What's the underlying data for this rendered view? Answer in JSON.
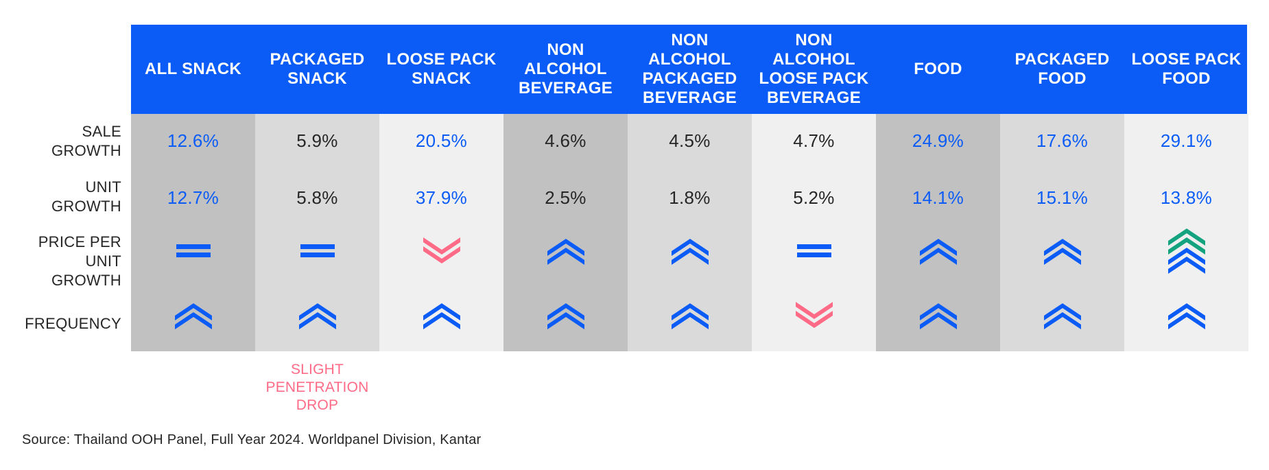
{
  "chart_data": {
    "type": "table",
    "columns": [
      "ALL SNACK",
      "PACKAGED\nSNACK",
      "LOOSE PACK\nSNACK",
      "NON\nALCOHOL\nBEVERAGE",
      "NON\nALCOHOL\nPACKAGED\nBEVERAGE",
      "NON\nALCOHOL\nLOOSE PACK\nBEVERAGE",
      "FOOD",
      "PACKAGED\nFOOD",
      "LOOSE PACK\nFOOD"
    ],
    "row_labels": [
      "SALE\nGROWTH",
      "UNIT\nGROWTH",
      "PRICE PER\nUNIT\nGROWTH",
      "FREQUENCY"
    ],
    "sale_growth": [
      "12.6%",
      "5.9%",
      "20.5%",
      "4.6%",
      "4.5%",
      "4.7%",
      "24.9%",
      "17.6%",
      "29.1%"
    ],
    "unit_growth": [
      "12.7%",
      "5.8%",
      "37.9%",
      "2.5%",
      "1.8%",
      "5.2%",
      "14.1%",
      "15.1%",
      "13.8%"
    ],
    "highlighted_value_columns": [
      0,
      2,
      6,
      7,
      8
    ],
    "price_per_unit_growth": [
      "equal",
      "equal",
      "down",
      "up",
      "up",
      "equal",
      "up",
      "up",
      "strong-up"
    ],
    "frequency": [
      "up",
      "up",
      "up",
      "up",
      "up",
      "down",
      "up",
      "up",
      "up"
    ],
    "column_shades": [
      "#c1c1c1",
      "#dadada",
      "#f0f0f0",
      "#c1c1c1",
      "#dadada",
      "#f0f0f0",
      "#c1c1c1",
      "#dadada",
      "#f0f0f0"
    ],
    "notes": [
      {
        "column": 1,
        "text": "SLIGHT\nPENETRATION\nDROP"
      }
    ]
  },
  "colors": {
    "header": "#0b5cf7",
    "accent_blue": "#0b5cf7",
    "text_dark": "#262626",
    "negative_pink": "#ff6b86",
    "positive_green": "#14a37f"
  },
  "source": "Source: Thailand OOH Panel, Full Year 2024. Worldpanel Division, Kantar"
}
